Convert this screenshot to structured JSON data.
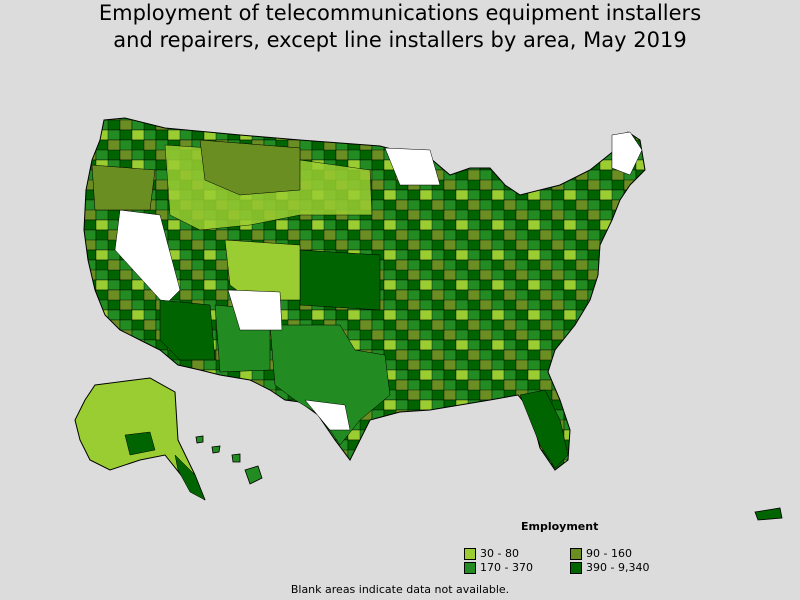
{
  "title_line1": "Employment of telecommunications equipment installers",
  "title_line2": "and repairers, except line installers by area, May 2019",
  "legend": {
    "title": "Employment",
    "items": [
      {
        "label": "30 - 80",
        "color": "#9acd32"
      },
      {
        "label": "90 - 160",
        "color": "#6b8e23"
      },
      {
        "label": "170 - 370",
        "color": "#228b22"
      },
      {
        "label": "390 - 9,340",
        "color": "#006400"
      }
    ]
  },
  "footnote": "Blank areas indicate data not available.",
  "colors": {
    "background": "#dcdcdc",
    "no_data": "#ffffff",
    "border": "#000000"
  }
}
